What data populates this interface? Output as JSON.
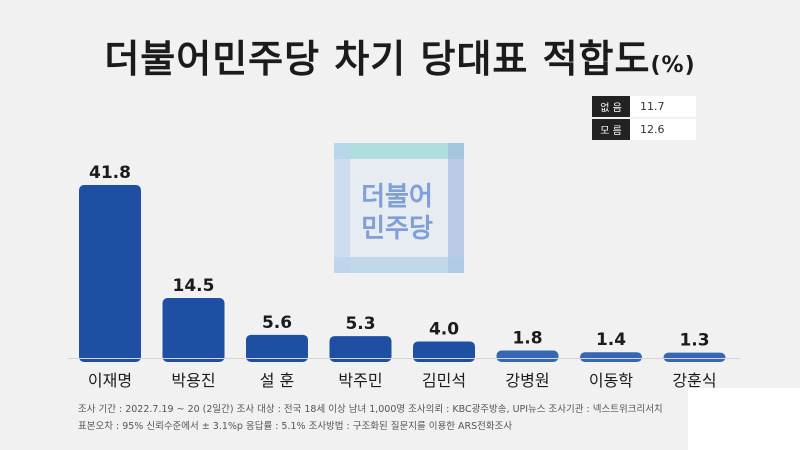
{
  "title": {
    "main": "더불어민주당 차기 당대표 적합도",
    "unit": "(%)"
  },
  "side_stats": [
    {
      "label": "없 음",
      "value": "11.7"
    },
    {
      "label": "모 름",
      "value": "12.6"
    }
  ],
  "watermark": {
    "line1": "더불어",
    "line2": "민주당"
  },
  "colors": {
    "bar_main": "#1e4fa3",
    "bar_light": "#3567b5",
    "text": "#1b1b1b"
  },
  "chart_data": {
    "type": "bar",
    "categories": [
      "이재명",
      "박용진",
      "설  훈",
      "박주민",
      "김민석",
      "강병원",
      "이동학",
      "강훈식"
    ],
    "values": [
      41.8,
      14.5,
      5.6,
      5.3,
      4.0,
      1.8,
      1.4,
      1.3
    ],
    "value_labels": [
      "41.8",
      "14.5",
      "5.6",
      "5.3",
      "4.0",
      "1.8",
      "1.4",
      "1.3"
    ],
    "ylim": [
      0,
      41.8
    ],
    "grid": false,
    "legend": "none"
  },
  "footer": {
    "line1": "조사 기간 : 2022.7.19 ~ 20 (2일간)   조사 대상 : 전국 18세 이상 남녀 1,000명 조사의뢰 : KBC광주방송, UPI뉴스   조사기관 : 넥스트위크리서치",
    "line2": "표본오차 : 95% 신뢰수준에서 ± 3.1%p   응답률 : 5.1%   조사방법 : 구조화된 질문지를 이용한 ARS전화조사"
  }
}
